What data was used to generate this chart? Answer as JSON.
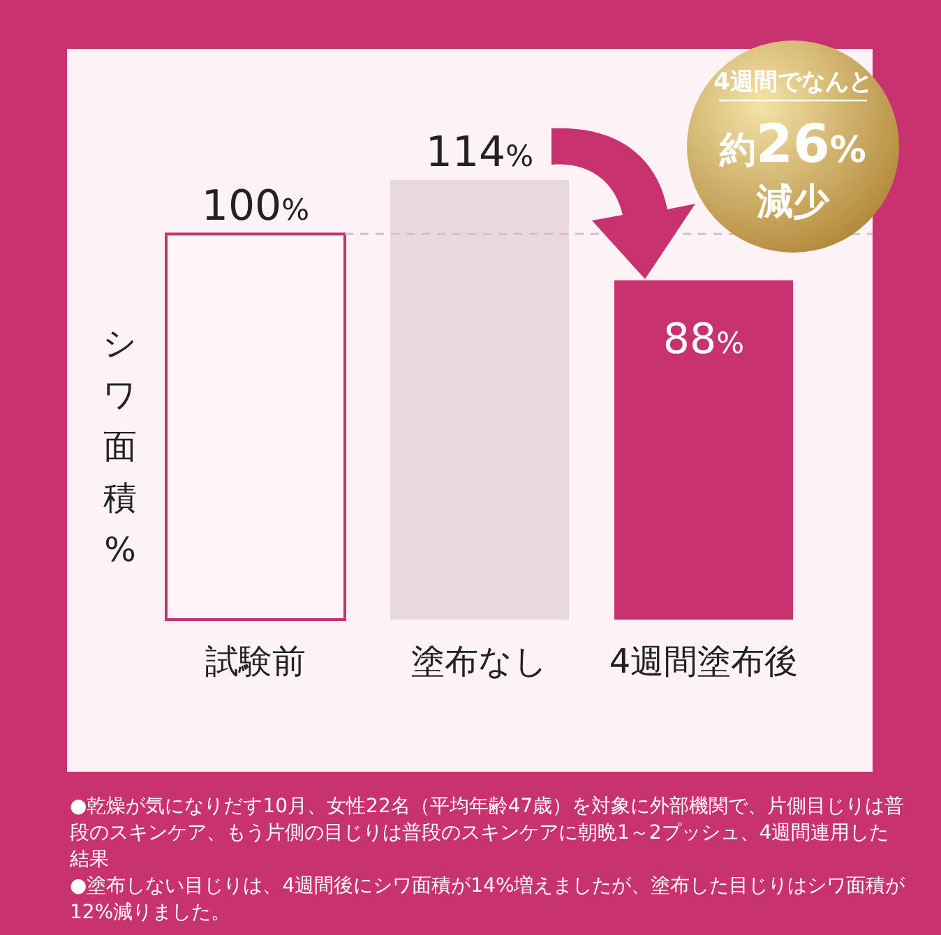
{
  "chart_data": {
    "type": "bar",
    "categories": [
      "試験前",
      "塗布なし",
      "4週間塗布後"
    ],
    "values": [
      100,
      114,
      88
    ],
    "colors": [
      "#fff5f8",
      "#e9d9df",
      "#c8336f"
    ],
    "value_labels": [
      "100%",
      "114%",
      "88%"
    ],
    "ylabel": "シワ面積%",
    "ref_lines": [
      {
        "axis": "y",
        "value": 100,
        "color": "#cfc3c9",
        "line_style": "dashed"
      }
    ],
    "annotations": [
      "4週間でなんと",
      "約26%",
      "減少",
      "●乾燥が気になりだす10月、女性22名（平均年齢47歳）を対象に外部機関で、片側目じりは普段のスキンケア、もう片側の目じりは普段のスキンケアに朝晩1～2プッシュ、4週間連用した結果",
      "●塗布しない目じりは、4週間後にシワ面積が14%増えましたが、塗布した目じりはシワ面積が12%減りました。"
    ]
  }
}
